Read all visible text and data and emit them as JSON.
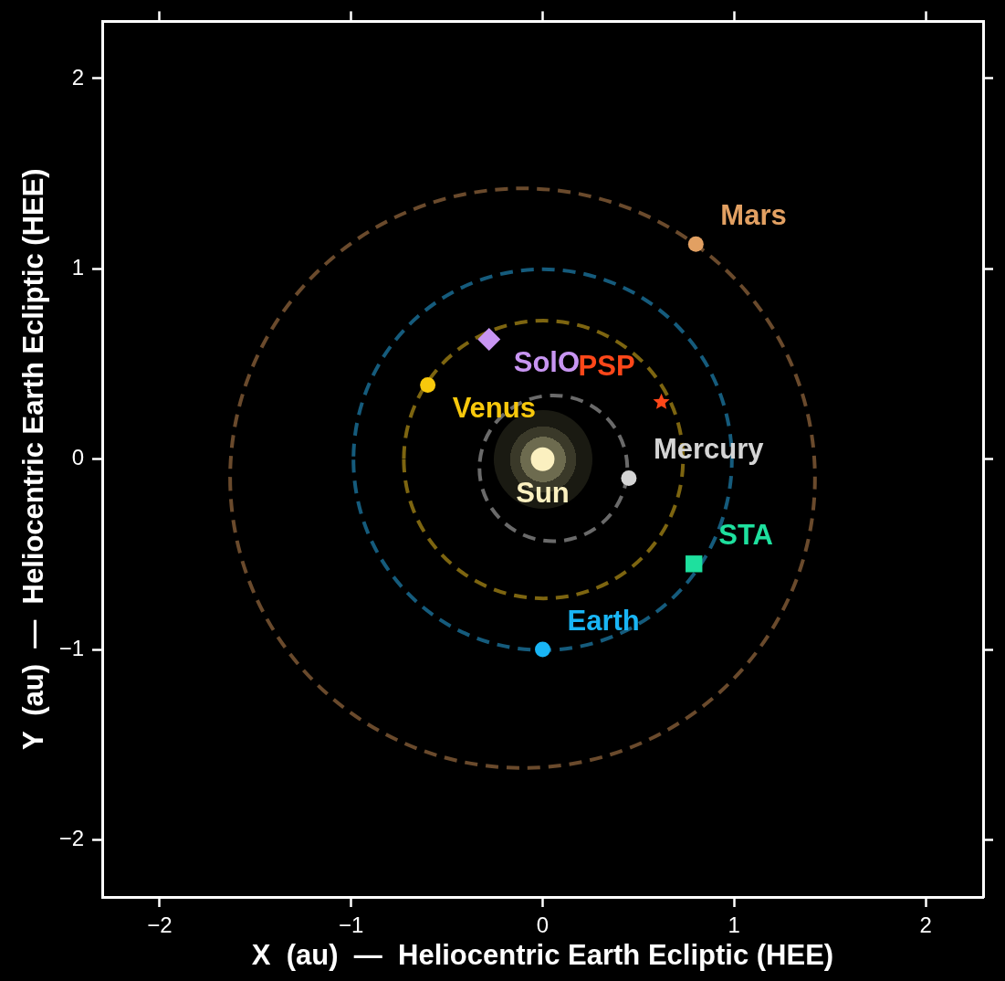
{
  "chart_data": {
    "type": "scatter",
    "xlabel": "X  (au)  —  Heliocentric Earth Ecliptic (HEE)",
    "ylabel": "Y  (au)  —  Heliocentric Earth Ecliptic (HEE)",
    "xlim": [
      -2.3,
      2.3
    ],
    "ylim": [
      -2.3,
      2.3
    ],
    "xticks": [
      -2,
      -1,
      0,
      1,
      2
    ],
    "yticks": [
      -2,
      -1,
      0,
      1,
      2
    ],
    "series": [
      {
        "name": "Sun",
        "color": "#fbf0c0",
        "marker": "circle",
        "x": [
          0
        ],
        "values": [
          0
        ]
      },
      {
        "name": "Mercury",
        "color": "#d4d4d4",
        "marker": "circle",
        "x": [
          0.45
        ],
        "values": [
          -0.1
        ]
      },
      {
        "name": "Venus",
        "color": "#f7c80c",
        "marker": "circle",
        "x": [
          -0.6
        ],
        "values": [
          0.39
        ]
      },
      {
        "name": "Earth",
        "color": "#19b5f5",
        "marker": "circle",
        "x": [
          0
        ],
        "values": [
          -1.0
        ]
      },
      {
        "name": "Mars",
        "color": "#e2a062",
        "marker": "circle",
        "x": [
          0.8
        ],
        "values": [
          1.13
        ]
      },
      {
        "name": "SolO",
        "color": "#c895f2",
        "marker": "diamond",
        "x": [
          -0.28
        ],
        "values": [
          0.63
        ]
      },
      {
        "name": "PSP",
        "color": "#ff4719",
        "marker": "star",
        "x": [
          0.62
        ],
        "values": [
          0.3
        ]
      },
      {
        "name": "STA",
        "color": "#1ee09e",
        "marker": "square",
        "x": [
          0.79
        ],
        "values": [
          -0.55
        ]
      }
    ]
  }
}
